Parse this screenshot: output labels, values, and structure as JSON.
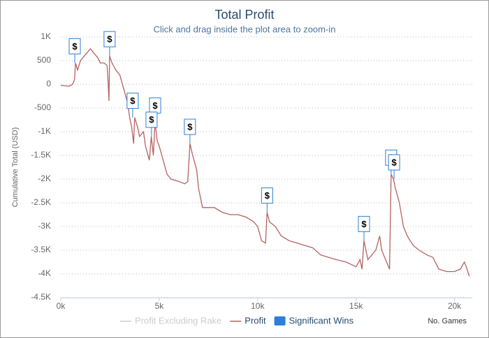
{
  "chart_data": {
    "type": "line",
    "title": "Total Profit",
    "subtitle": "Click and drag inside the plot area to zoom-in",
    "ylabel": "Cumulative Total (USD)",
    "xlabel": "No. Games",
    "xlim": [
      0,
      20900
    ],
    "xticks": [
      {
        "value": 0,
        "label": "0k"
      },
      {
        "value": 5000,
        "label": "5k"
      },
      {
        "value": 10000,
        "label": "10k"
      },
      {
        "value": 15000,
        "label": "15k"
      },
      {
        "value": 20000,
        "label": "20k"
      }
    ],
    "ylim": [
      -4500,
      1000
    ],
    "yticks": [
      {
        "value": 1000,
        "label": "1K"
      },
      500,
      0,
      -500,
      {
        "value": -1000,
        "label": "-1K"
      },
      {
        "value": -1500,
        "label": "-1.5K"
      },
      {
        "value": -2000,
        "label": "-2K"
      },
      {
        "value": -2500,
        "label": "-2.5K"
      },
      {
        "value": -3000,
        "label": "-3K"
      },
      {
        "value": -3500,
        "label": "-3.5K"
      },
      {
        "value": -4000,
        "label": "-4K"
      },
      {
        "value": -4500,
        "label": "-4.5K"
      }
    ],
    "grid": true,
    "x": [
      0,
      200,
      400,
      600,
      700,
      750,
      850,
      1000,
      1200,
      1400,
      1500,
      1700,
      1900,
      2000,
      2200,
      2350,
      2400,
      2450,
      2480,
      2600,
      2800,
      3000,
      3200,
      3400,
      3500,
      3600,
      3700,
      3750,
      3900,
      4000,
      4200,
      4300,
      4500,
      4600,
      4700,
      4790,
      4900,
      5000,
      5200,
      5400,
      5600,
      6000,
      6300,
      6450,
      6560,
      6700,
      6900,
      7000,
      7200,
      7400,
      7800,
      8200,
      8600,
      9000,
      9400,
      9800,
      10000,
      10200,
      10400,
      10480,
      10600,
      10900,
      11200,
      11600,
      12000,
      12400,
      12800,
      13200,
      13600,
      14000,
      14500,
      15000,
      15200,
      15300,
      15400,
      15600,
      15800,
      16000,
      16200,
      16300,
      16500,
      16700,
      16780,
      16900,
      17000,
      17200,
      17400,
      17600,
      17900,
      18200,
      18600,
      18900,
      19200,
      19600,
      20000,
      20300,
      20500,
      20600,
      20750
    ],
    "series": [
      {
        "name": "Profit Excluding Rake",
        "color": "#cccccc",
        "visible": false
      },
      {
        "name": "Profit",
        "color": "#b5625f",
        "values": [
          -20,
          -30,
          -40,
          0,
          100,
          450,
          300,
          500,
          600,
          700,
          750,
          650,
          550,
          450,
          450,
          400,
          100,
          -350,
          600,
          450,
          300,
          200,
          -100,
          -400,
          -700,
          -900,
          -1250,
          -700,
          -900,
          -1100,
          -1000,
          -1300,
          -1600,
          -1100,
          -1500,
          -800,
          -1200,
          -1300,
          -1600,
          -1900,
          -2000,
          -2050,
          -2100,
          -2050,
          -1250,
          -1500,
          -1800,
          -2200,
          -2600,
          -2600,
          -2600,
          -2700,
          -2750,
          -2750,
          -2800,
          -2900,
          -3000,
          -3300,
          -3350,
          -2700,
          -2900,
          -3000,
          -3200,
          -3300,
          -3350,
          -3400,
          -3450,
          -3600,
          -3650,
          -3700,
          -3750,
          -3850,
          -3700,
          -3900,
          -3300,
          -3700,
          -3600,
          -3500,
          -3200,
          -3500,
          -3700,
          -3900,
          -1900,
          -2000,
          -2200,
          -2500,
          -3000,
          -3200,
          -3400,
          -3500,
          -3600,
          -3650,
          -3900,
          -3950,
          -3950,
          -3900,
          -3750,
          -3850,
          -4050
        ]
      }
    ],
    "flags": {
      "name": "Significant Wins",
      "color": "#2f7ed8",
      "x": [
        710,
        2480,
        3650,
        4790,
        4610,
        6560,
        10480,
        15400,
        16780,
        16930
      ],
      "values": [
        450,
        600,
        -700,
        -800,
        -1100,
        -1250,
        -2700,
        -3300,
        -1900,
        -2000
      ],
      "labels": [
        "$",
        "$",
        "$",
        "$",
        "$",
        "$",
        "$",
        "$",
        "$",
        "$"
      ]
    }
  }
}
